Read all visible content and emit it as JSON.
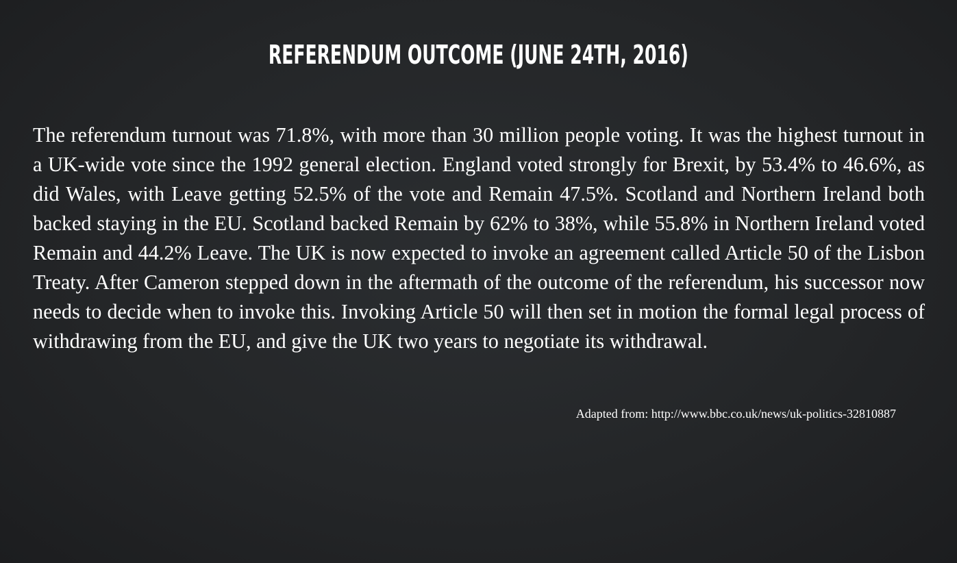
{
  "slide": {
    "title": "REFERENDUM OUTCOME (JUNE 24TH, 2016)",
    "body": "The referendum turnout was 71.8%, with more than 30 million people voting. It was the highest turnout in a UK-wide vote since the 1992 general election. England voted strongly for Brexit, by 53.4% to 46.6%, as did Wales, with Leave getting 52.5% of the vote and Remain 47.5%. Scotland and Northern Ireland both backed staying in the EU. Scotland backed Remain by 62% to 38%, while 55.8% in Northern Ireland voted Remain and 44.2% Leave. The UK is now expected to invoke an agreement called Article 50 of the Lisbon Treaty. After Cameron stepped down in the aftermath of the outcome of the referendum, his successor now needs to decide when to invoke this. Invoking Article 50 will then set in motion the formal legal process of withdrawing from the EU, and give the UK two years to negotiate its withdrawal.",
    "source": "Adapted from: http://www.bbc.co.uk/news/uk-politics-32810887"
  },
  "colors": {
    "background": "#25272a",
    "text": "#ffffff"
  }
}
